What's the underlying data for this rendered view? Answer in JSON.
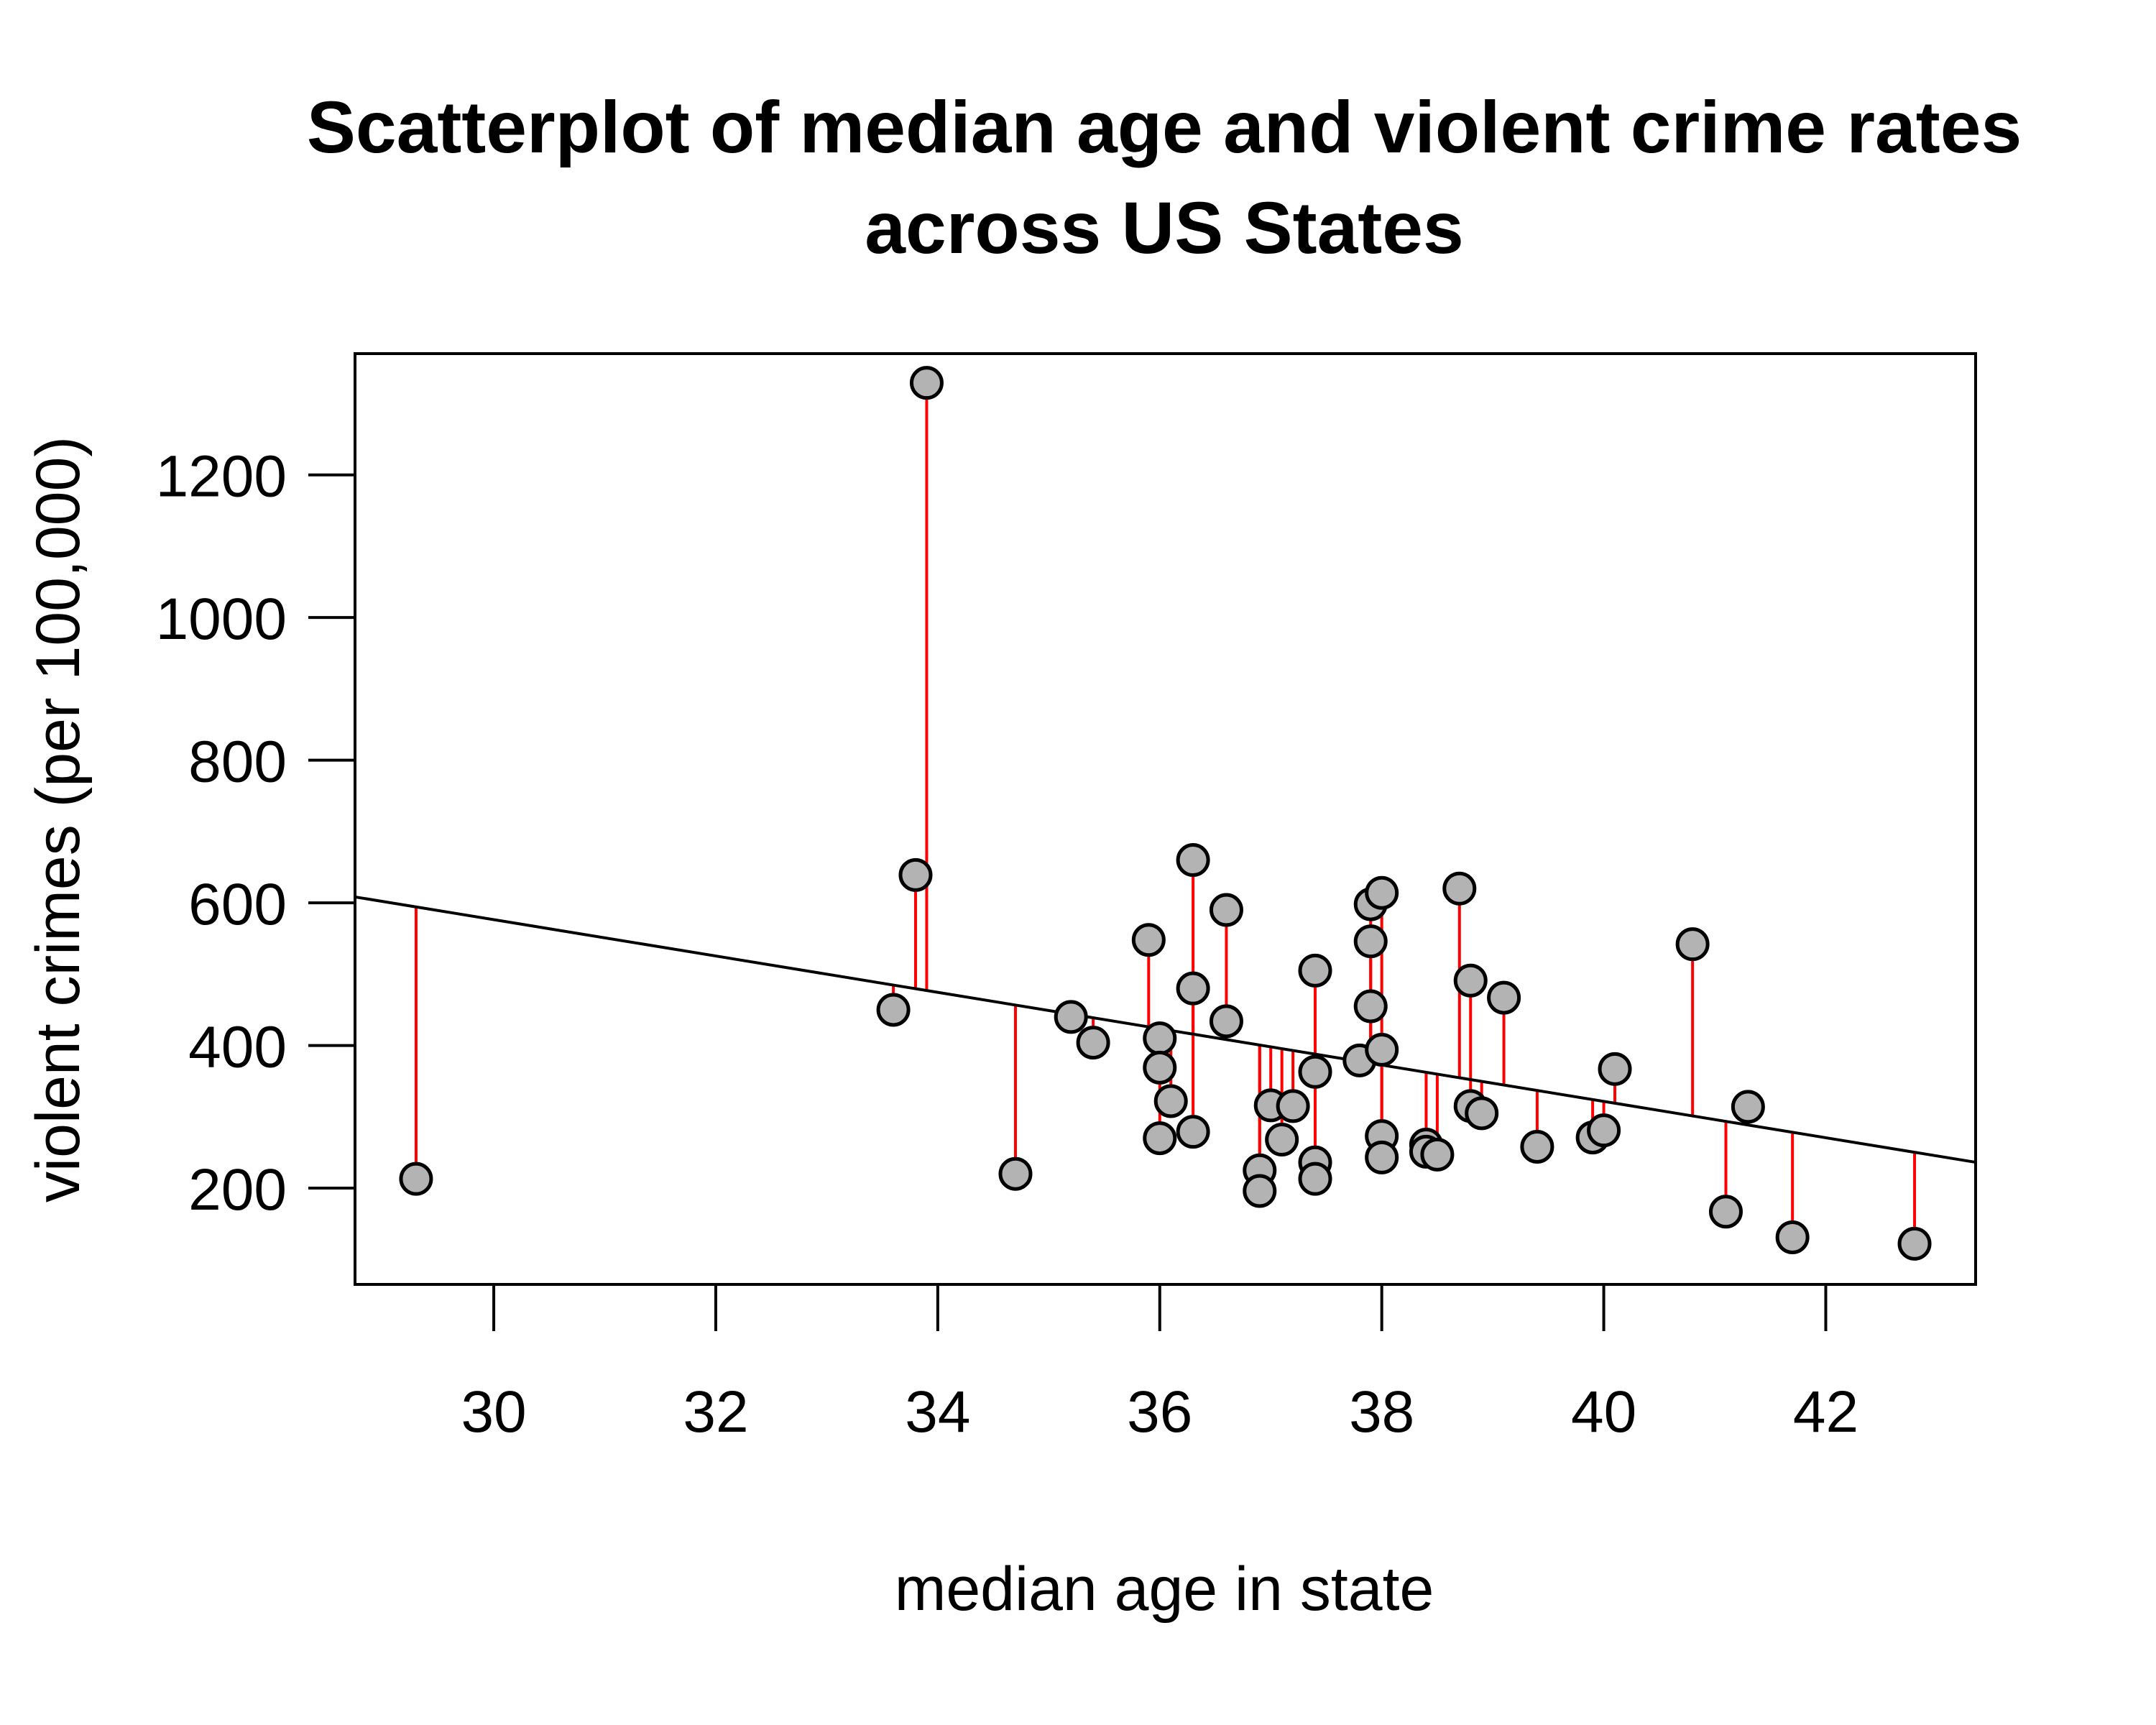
{
  "chart_data": {
    "type": "scatter",
    "title": [
      "Scatterplot of median age and violent crime rates",
      "across US States"
    ],
    "xlabel": "median age in state",
    "ylabel": "violent crimes (per 100,000)",
    "xlim": [
      28.75,
      43.35
    ],
    "ylim": [
      65,
      1370
    ],
    "xticks": [
      30,
      32,
      34,
      36,
      38,
      40,
      42
    ],
    "yticks": [
      200,
      400,
      600,
      800,
      1000,
      1200
    ],
    "regression": {
      "slope": -25.48,
      "intercept": 1340.8
    },
    "colors": {
      "points_fill": "#b3b3b3",
      "points_stroke": "#000000",
      "residuals": "#ff0000",
      "fit_line": "#000000"
    },
    "points": [
      {
        "x": 29.3,
        "y": 213
      },
      {
        "x": 33.6,
        "y": 450
      },
      {
        "x": 33.8,
        "y": 639
      },
      {
        "x": 33.9,
        "y": 1329
      },
      {
        "x": 34.7,
        "y": 220
      },
      {
        "x": 35.2,
        "y": 440
      },
      {
        "x": 35.4,
        "y": 404
      },
      {
        "x": 35.9,
        "y": 548
      },
      {
        "x": 36.0,
        "y": 410
      },
      {
        "x": 36.0,
        "y": 369
      },
      {
        "x": 36.0,
        "y": 270
      },
      {
        "x": 36.1,
        "y": 322
      },
      {
        "x": 36.3,
        "y": 660
      },
      {
        "x": 36.3,
        "y": 480
      },
      {
        "x": 36.3,
        "y": 279
      },
      {
        "x": 36.6,
        "y": 590
      },
      {
        "x": 36.6,
        "y": 434
      },
      {
        "x": 36.9,
        "y": 225
      },
      {
        "x": 36.9,
        "y": 196
      },
      {
        "x": 37.0,
        "y": 316
      },
      {
        "x": 37.1,
        "y": 268
      },
      {
        "x": 37.2,
        "y": 315
      },
      {
        "x": 37.4,
        "y": 505
      },
      {
        "x": 37.4,
        "y": 363
      },
      {
        "x": 37.4,
        "y": 236
      },
      {
        "x": 37.4,
        "y": 213
      },
      {
        "x": 37.8,
        "y": 379
      },
      {
        "x": 37.9,
        "y": 598
      },
      {
        "x": 37.9,
        "y": 546
      },
      {
        "x": 37.9,
        "y": 455
      },
      {
        "x": 38.0,
        "y": 614
      },
      {
        "x": 38.0,
        "y": 394
      },
      {
        "x": 38.0,
        "y": 273
      },
      {
        "x": 38.0,
        "y": 243
      },
      {
        "x": 38.4,
        "y": 261
      },
      {
        "x": 38.4,
        "y": 251
      },
      {
        "x": 38.5,
        "y": 247
      },
      {
        "x": 38.7,
        "y": 620
      },
      {
        "x": 38.8,
        "y": 491
      },
      {
        "x": 38.8,
        "y": 315
      },
      {
        "x": 38.9,
        "y": 305
      },
      {
        "x": 39.1,
        "y": 467
      },
      {
        "x": 39.4,
        "y": 258
      },
      {
        "x": 39.9,
        "y": 271
      },
      {
        "x": 40.0,
        "y": 281
      },
      {
        "x": 40.1,
        "y": 367
      },
      {
        "x": 40.8,
        "y": 542
      },
      {
        "x": 41.1,
        "y": 167
      },
      {
        "x": 41.3,
        "y": 314
      },
      {
        "x": 41.7,
        "y": 131
      },
      {
        "x": 42.8,
        "y": 122
      }
    ]
  }
}
